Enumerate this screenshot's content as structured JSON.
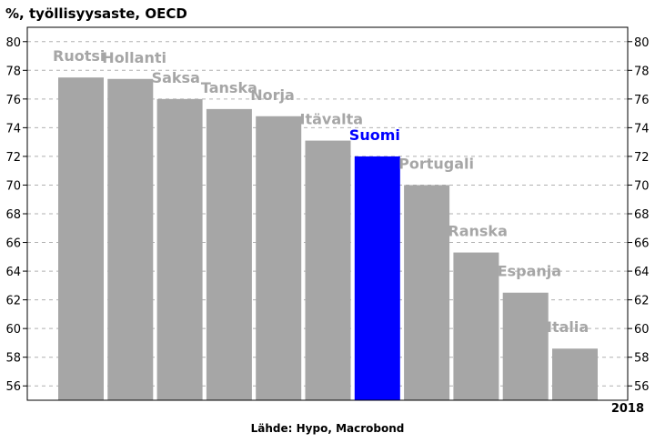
{
  "title": "%, työllisyysaste, OECD",
  "source": "Lähde: Hypo, Macrobond",
  "chart_data": {
    "type": "bar",
    "title": "%, työllisyysaste, OECD",
    "xlabel": "2018",
    "ylabel": "",
    "ylim": [
      55,
      81
    ],
    "yticks": [
      56,
      58,
      60,
      62,
      64,
      66,
      68,
      70,
      72,
      74,
      76,
      78,
      80
    ],
    "categories": [
      "Ruotsi",
      "Hollanti",
      "Saksa",
      "Tanska",
      "Norja",
      "Itävalta",
      "Suomi",
      "Portugali",
      "Ranska",
      "Espanja",
      "Italia"
    ],
    "values": [
      77.5,
      77.4,
      76.0,
      75.3,
      74.8,
      73.1,
      72.0,
      70.0,
      65.3,
      62.5,
      58.6
    ],
    "highlight": "Suomi",
    "colors": {
      "bar": "#a6a6a6",
      "highlight": "#0000ff",
      "label": "#a6a6a6",
      "highlight_label": "#0000ff"
    },
    "grid": true,
    "grid_style": "dashed horizontal",
    "legend": "none"
  }
}
